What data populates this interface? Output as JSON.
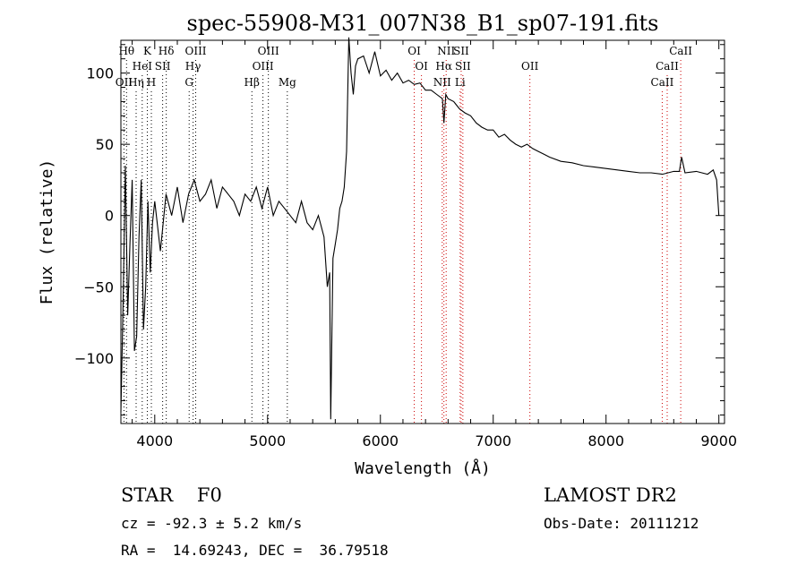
{
  "chart_data": {
    "type": "line",
    "title": "spec-55908-M31_007N38_B1_sp07-191.fits",
    "xlabel": "Wavelength (Å)",
    "ylabel": "Flux (relative)",
    "xlim": [
      3700,
      9050
    ],
    "ylim": [
      -146,
      123
    ],
    "xticks": [
      4000,
      5000,
      6000,
      7000,
      8000,
      9000
    ],
    "yticks": [
      -100,
      -50,
      0,
      50,
      100
    ],
    "series": [
      {
        "color": "#000000",
        "x": [
          3700,
          3720,
          3740,
          3760,
          3780,
          3800,
          3820,
          3840,
          3860,
          3880,
          3900,
          3920,
          3940,
          3960,
          3980,
          4000,
          4050,
          4100,
          4150,
          4200,
          4250,
          4300,
          4350,
          4400,
          4450,
          4500,
          4550,
          4600,
          4650,
          4700,
          4750,
          4800,
          4850,
          4900,
          4950,
          5000,
          5050,
          5100,
          5150,
          5200,
          5250,
          5300,
          5350,
          5400,
          5450,
          5500,
          5530,
          5550,
          5560,
          5580,
          5600,
          5620,
          5640,
          5660,
          5680,
          5700,
          5720,
          5740,
          5760,
          5780,
          5800,
          5850,
          5900,
          5950,
          6000,
          6050,
          6100,
          6150,
          6200,
          6250,
          6300,
          6350,
          6400,
          6450,
          6500,
          6550,
          6563,
          6580,
          6600,
          6650,
          6700,
          6750,
          6800,
          6850,
          6900,
          6950,
          7000,
          7050,
          7100,
          7150,
          7200,
          7250,
          7300,
          7350,
          7400,
          7450,
          7500,
          7600,
          7700,
          7800,
          7900,
          8000,
          8100,
          8200,
          8300,
          8400,
          8500,
          8600,
          8650,
          8670,
          8700,
          8800,
          8900,
          8950,
          8980,
          9000
        ],
        "y": [
          -138,
          -60,
          35,
          -70,
          -20,
          25,
          -95,
          -85,
          -15,
          25,
          -80,
          -50,
          10,
          -40,
          -5,
          10,
          -25,
          15,
          0,
          20,
          -5,
          15,
          25,
          10,
          15,
          25,
          5,
          20,
          15,
          10,
          0,
          15,
          10,
          20,
          5,
          20,
          0,
          10,
          5,
          0,
          -5,
          10,
          -5,
          -10,
          0,
          -15,
          -50,
          -40,
          -143,
          -30,
          -20,
          -10,
          5,
          10,
          20,
          45,
          125,
          100,
          85,
          105,
          110,
          112,
          100,
          115,
          98,
          102,
          95,
          100,
          93,
          95,
          92,
          93,
          88,
          88,
          85,
          82,
          65,
          85,
          82,
          80,
          75,
          72,
          70,
          65,
          62,
          60,
          60,
          55,
          57,
          53,
          50,
          48,
          50,
          47,
          45,
          43,
          41,
          38,
          37,
          35,
          34,
          33,
          32,
          31,
          30,
          30,
          29,
          31,
          31,
          41,
          30,
          31,
          29,
          32,
          25,
          0
        ]
      }
    ],
    "line_markers": [
      {
        "label": "OII",
        "x": 3727,
        "row": 3
      },
      {
        "label": "Hθ",
        "x": 3750,
        "row": 1
      },
      {
        "label": "Hη",
        "x": 3835,
        "row": 3
      },
      {
        "label": "K",
        "x": 3934,
        "row": 1
      },
      {
        "label": "HeI",
        "x": 3889,
        "row": 2
      },
      {
        "label": "H",
        "x": 3970,
        "row": 3
      },
      {
        "label": "SII",
        "x": 4070,
        "row": 2
      },
      {
        "label": "Hδ",
        "x": 4102,
        "row": 1
      },
      {
        "label": "OIII",
        "x": 4363,
        "row": 1
      },
      {
        "label": "Hγ",
        "x": 4340,
        "row": 2
      },
      {
        "label": "G",
        "x": 4305,
        "row": 3
      },
      {
        "label": "Hβ",
        "x": 4861,
        "row": 3
      },
      {
        "label": "OIII",
        "x": 4959,
        "row": 2
      },
      {
        "label": "OIII",
        "x": 5007,
        "row": 1
      },
      {
        "label": "Mg",
        "x": 5175,
        "row": 3
      },
      {
        "label": "OI",
        "x": 6300,
        "row": 1
      },
      {
        "label": "OI",
        "x": 6364,
        "row": 2
      },
      {
        "label": "NII",
        "x": 6548,
        "row": 3
      },
      {
        "label": "NII",
        "x": 6583,
        "row": 1
      },
      {
        "label": "Hα",
        "x": 6563,
        "row": 2
      },
      {
        "label": "SII",
        "x": 6716,
        "row": 1
      },
      {
        "label": "SII",
        "x": 6731,
        "row": 2
      },
      {
        "label": "Li",
        "x": 6707,
        "row": 3
      },
      {
        "label": "OII",
        "x": 7325,
        "row": 2
      },
      {
        "label": "CaII",
        "x": 8498,
        "row": 3
      },
      {
        "label": "CaII",
        "x": 8542,
        "row": 2
      },
      {
        "label": "CaII",
        "x": 8662,
        "row": 1
      }
    ],
    "marker_colors": {
      "blue": "#000000",
      "red": "#cc0000"
    },
    "grid": false,
    "legend": "none"
  },
  "info": {
    "class": "STAR    F0",
    "survey": "LAMOST DR2",
    "cz": "cz = -92.3 ± 5.2 km/s",
    "obs_date": "Obs-Date: 20111212",
    "radec": "RA =  14.69243, DEC =  36.79518"
  }
}
